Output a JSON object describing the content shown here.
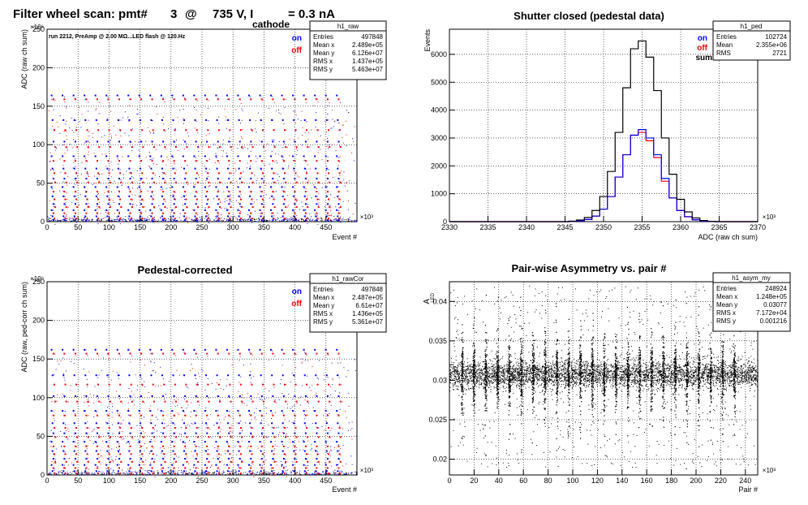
{
  "canvas_title": {
    "prefix": "Filter wheel scan: pmt#",
    "pmt": "3",
    "at": "@",
    "voltage": "735 V, I",
    "subscript": "cathode",
    "current": "= 0.3 nA"
  },
  "colors": {
    "on": "#0000ff",
    "off": "#ff0000",
    "sum": "#000000",
    "grid": "#000000"
  },
  "chart_data": [
    {
      "id": "raw",
      "type": "scatter",
      "title": "",
      "xlabel": "Event #",
      "ylabel": "ADC (raw ch sum)",
      "xlim": [
        0,
        500
      ],
      "ylim": [
        0,
        250
      ],
      "x_exponent": "×10³",
      "y_exponent": "×10⁶",
      "xticks": [
        0,
        50,
        100,
        150,
        200,
        250,
        300,
        350,
        400,
        450
      ],
      "yticks": [
        0,
        50,
        100,
        150,
        200,
        250
      ],
      "grid": true,
      "annotation": "run 2212, PreAmp @ 2.00 MΩ...LED flash @  120.Hz",
      "legend": [
        {
          "name": "on",
          "color": "#0000ff"
        },
        {
          "name": "off",
          "color": "#ff0000"
        }
      ],
      "levels_on": [
        165,
        133,
        105,
        86,
        70,
        57,
        46,
        34,
        24,
        16,
        8,
        3
      ],
      "levels_off": [
        160,
        120,
        98,
        80,
        64,
        52,
        40,
        30,
        20,
        12,
        5
      ],
      "stats": {
        "name": "h1_raw",
        "rows": [
          {
            "label": "Entries",
            "value": "497848"
          },
          {
            "label": "Mean x",
            "value": "2.489e+05"
          },
          {
            "label": "Mean y",
            "value": "6.126e+07"
          },
          {
            "label": "RMS x",
            "value": "1.437e+05"
          },
          {
            "label": "RMS y",
            "value": "5.463e+07"
          }
        ]
      }
    },
    {
      "id": "ped",
      "type": "line",
      "title": "Shutter closed (pedestal data)",
      "xlabel": "ADC (raw ch sum)",
      "ylabel": "Events",
      "xlim": [
        2330,
        2370
      ],
      "ylim": [
        0,
        6900
      ],
      "x_exponent": "×10³",
      "xticks": [
        2330,
        2335,
        2340,
        2345,
        2350,
        2355,
        2360,
        2365,
        2370
      ],
      "yticks": [
        0,
        1000,
        2000,
        3000,
        4000,
        5000,
        6000
      ],
      "grid": true,
      "legend": [
        {
          "name": "on",
          "color": "#0000ff"
        },
        {
          "name": "off",
          "color": "#ff0000"
        },
        {
          "name": "sum",
          "color": "#000000"
        }
      ],
      "x": [
        2346,
        2347,
        2348,
        2349,
        2350,
        2351,
        2352,
        2353,
        2354,
        2355,
        2356,
        2357,
        2358,
        2359,
        2360,
        2361,
        2362,
        2363,
        2364
      ],
      "series": [
        {
          "name": "sum",
          "values": [
            20,
            60,
            150,
            400,
            900,
            1800,
            3200,
            4800,
            6200,
            6480,
            5900,
            4700,
            3000,
            1700,
            800,
            350,
            130,
            40,
            10
          ]
        },
        {
          "name": "on",
          "values": [
            10,
            30,
            80,
            200,
            450,
            900,
            1600,
            2400,
            3100,
            3300,
            3000,
            2400,
            1550,
            850,
            400,
            180,
            65,
            20,
            5
          ]
        },
        {
          "name": "off",
          "values": [
            10,
            30,
            75,
            200,
            450,
            900,
            1600,
            2400,
            3100,
            3200,
            2900,
            2300,
            1450,
            850,
            400,
            170,
            65,
            20,
            5
          ]
        }
      ],
      "stats": {
        "name": "h1_ped",
        "rows": [
          {
            "label": "Entries",
            "value": "102724"
          },
          {
            "label": "Mean",
            "value": "2.355e+06"
          },
          {
            "label": "RMS",
            "value": "2721"
          }
        ]
      }
    },
    {
      "id": "cor",
      "type": "scatter",
      "title": "Pedestal-corrected",
      "xlabel": "Event #",
      "ylabel": "ADC (raw, ped-corr ch sum)",
      "xlim": [
        0,
        500
      ],
      "ylim": [
        0,
        250
      ],
      "x_exponent": "×10³",
      "y_exponent": "×10⁶",
      "xticks": [
        0,
        50,
        100,
        150,
        200,
        250,
        300,
        350,
        400,
        450
      ],
      "yticks": [
        0,
        50,
        100,
        150,
        200,
        250
      ],
      "grid": true,
      "legend": [
        {
          "name": "on",
          "color": "#0000ff"
        },
        {
          "name": "off",
          "color": "#ff0000"
        }
      ],
      "levels_on": [
        163,
        130,
        103,
        84,
        68,
        55,
        44,
        32,
        22,
        14,
        6
      ],
      "levels_off": [
        158,
        118,
        96,
        78,
        62,
        50,
        38,
        28,
        18,
        10,
        3
      ],
      "stats": {
        "name": "h1_rawCor",
        "rows": [
          {
            "label": "Entries",
            "value": "497848"
          },
          {
            "label": "Mean x",
            "value": "2.487e+05"
          },
          {
            "label": "Mean y",
            "value": "6.61e+07"
          },
          {
            "label": "RMS x",
            "value": "1.436e+05"
          },
          {
            "label": "RMS y",
            "value": "5.361e+07"
          }
        ]
      }
    },
    {
      "id": "asym",
      "type": "scatter",
      "title": "Pair-wise Asymmetry vs. pair #",
      "xlabel": "Pair #",
      "ylabel": "A",
      "ylabel_sub": "LED",
      "xlim": [
        0,
        250
      ],
      "ylim": [
        0.018,
        0.0425
      ],
      "x_exponent": "×10³",
      "xticks": [
        0,
        20,
        40,
        60,
        80,
        100,
        120,
        140,
        160,
        180,
        200,
        220,
        240
      ],
      "yticks": [
        0.02,
        0.025,
        0.03,
        0.035,
        0.04
      ],
      "grid": true,
      "band_center": 0.0308,
      "band_rms": 0.0012,
      "stats": {
        "name": "h1_asym_my",
        "rows": [
          {
            "label": "Entries",
            "value": "248924"
          },
          {
            "label": "Mean x",
            "value": "1.248e+05"
          },
          {
            "label": "Mean y",
            "value": "0.03077"
          },
          {
            "label": "RMS x",
            "value": "7.172e+04"
          },
          {
            "label": "RMS y",
            "value": "0.001216"
          }
        ]
      }
    }
  ]
}
